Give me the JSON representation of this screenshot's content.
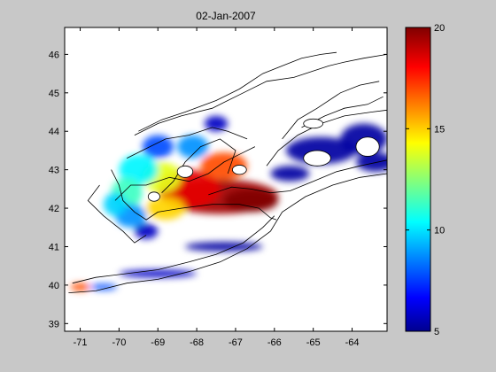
{
  "chart_data": {
    "type": "heatmap",
    "title": "02-Jan-2007",
    "xlabel": "",
    "ylabel": "",
    "xlim": [
      -71.4,
      -63.1
    ],
    "ylim": [
      38.8,
      46.7
    ],
    "x_ticks": [
      -71,
      -70,
      -69,
      -68,
      -67,
      -66,
      -65,
      -64
    ],
    "y_ticks": [
      39,
      40,
      41,
      42,
      43,
      44,
      45,
      46
    ],
    "x_tick_labels": [
      "-71",
      "-70",
      "-69",
      "-68",
      "-67",
      "-66",
      "-65",
      "-64"
    ],
    "y_tick_labels": [
      "39",
      "40",
      "41",
      "42",
      "43",
      "44",
      "45",
      "46"
    ],
    "colormap": "jet",
    "clim": [
      5,
      20
    ],
    "colorbar": {
      "ticks": [
        5,
        10,
        15,
        20
      ],
      "tick_labels": [
        "5",
        "10",
        "15",
        "20"
      ]
    },
    "grid": false,
    "field_blobs": [
      {
        "x": -67.4,
        "y": 42.3,
        "rx": 1.5,
        "ry": 0.45,
        "value": 19.5
      },
      {
        "x": -66.6,
        "y": 42.2,
        "rx": 0.7,
        "ry": 0.3,
        "value": 20
      },
      {
        "x": -68.2,
        "y": 42.5,
        "rx": 0.8,
        "ry": 0.5,
        "value": 18.5
      },
      {
        "x": -67.3,
        "y": 43.1,
        "rx": 0.6,
        "ry": 0.35,
        "value": 17
      },
      {
        "x": -68.9,
        "y": 42.8,
        "rx": 0.5,
        "ry": 0.4,
        "value": 14
      },
      {
        "x": -69.5,
        "y": 43.0,
        "rx": 0.5,
        "ry": 0.4,
        "value": 10.5
      },
      {
        "x": -69.8,
        "y": 42.4,
        "rx": 0.4,
        "ry": 0.4,
        "value": 11.5
      },
      {
        "x": -69.0,
        "y": 43.6,
        "rx": 0.4,
        "ry": 0.3,
        "value": 8
      },
      {
        "x": -68.1,
        "y": 43.6,
        "rx": 0.4,
        "ry": 0.3,
        "value": 9
      },
      {
        "x": -69.7,
        "y": 41.8,
        "rx": 0.4,
        "ry": 0.3,
        "value": 9
      },
      {
        "x": -68.8,
        "y": 42.0,
        "rx": 0.5,
        "ry": 0.3,
        "value": 15
      },
      {
        "x": -67.5,
        "y": 44.2,
        "rx": 0.3,
        "ry": 0.2,
        "value": 6
      },
      {
        "x": -70.1,
        "y": 42.1,
        "rx": 0.3,
        "ry": 0.3,
        "value": 10
      },
      {
        "x": -69.3,
        "y": 41.4,
        "rx": 0.3,
        "ry": 0.2,
        "value": 6
      },
      {
        "x": -64.8,
        "y": 43.5,
        "rx": 0.9,
        "ry": 0.35,
        "value": 5.5
      },
      {
        "x": -63.7,
        "y": 43.8,
        "rx": 0.6,
        "ry": 0.4,
        "value": 5.5
      },
      {
        "x": -63.4,
        "y": 43.2,
        "rx": 0.5,
        "ry": 0.25,
        "value": 5.5
      },
      {
        "x": -65.6,
        "y": 42.9,
        "rx": 0.5,
        "ry": 0.2,
        "value": 5.5
      },
      {
        "x": -71.0,
        "y": 39.95,
        "rx": 0.25,
        "ry": 0.1,
        "value": 17
      },
      {
        "x": -70.4,
        "y": 39.95,
        "rx": 0.35,
        "ry": 0.08,
        "value": 8
      },
      {
        "x": -69.0,
        "y": 40.3,
        "rx": 1.0,
        "ry": 0.1,
        "value": 6
      },
      {
        "x": -67.3,
        "y": 41.0,
        "rx": 1.0,
        "ry": 0.12,
        "value": 5.5
      }
    ],
    "coast_lines": [
      [
        [
          -69.6,
          43.9
        ],
        [
          -69.0,
          44.2
        ],
        [
          -68.4,
          44.4
        ],
        [
          -67.6,
          44.6
        ],
        [
          -66.8,
          45.0
        ],
        [
          -66.2,
          45.3
        ],
        [
          -65.5,
          45.4
        ],
        [
          -64.6,
          45.7
        ],
        [
          -64.2,
          45.8
        ],
        [
          -63.7,
          45.9
        ],
        [
          -63.1,
          46.0
        ]
      ],
      [
        [
          -69.5,
          44.0
        ],
        [
          -68.9,
          44.3
        ],
        [
          -68.3,
          44.5
        ],
        [
          -67.5,
          44.8
        ],
        [
          -66.9,
          45.1
        ],
        [
          -66.3,
          45.5
        ],
        [
          -65.8,
          45.7
        ],
        [
          -65.3,
          45.9
        ],
        [
          -64.8,
          46.0
        ],
        [
          -64.4,
          46.05
        ]
      ],
      [
        [
          -70.2,
          43.0
        ],
        [
          -70.0,
          42.6
        ],
        [
          -69.9,
          42.2
        ],
        [
          -69.6,
          41.9
        ],
        [
          -69.3,
          41.7
        ],
        [
          -69.0,
          41.9
        ],
        [
          -68.4,
          42.0
        ],
        [
          -67.6,
          42.1
        ],
        [
          -66.9,
          42.1
        ],
        [
          -66.4,
          42.0
        ],
        [
          -66.1,
          41.75
        ],
        [
          -65.95,
          41.7
        ]
      ],
      [
        [
          -71.2,
          40.05
        ],
        [
          -70.6,
          40.2
        ],
        [
          -69.8,
          40.3
        ],
        [
          -69.0,
          40.4
        ],
        [
          -68.2,
          40.6
        ],
        [
          -67.5,
          40.8
        ],
        [
          -66.8,
          41.1
        ],
        [
          -66.3,
          41.5
        ],
        [
          -66.0,
          41.8
        ]
      ],
      [
        [
          -71.3,
          39.8
        ],
        [
          -70.6,
          39.85
        ],
        [
          -69.8,
          40.05
        ],
        [
          -69.0,
          40.15
        ],
        [
          -68.2,
          40.35
        ],
        [
          -67.4,
          40.6
        ],
        [
          -66.7,
          40.95
        ],
        [
          -66.1,
          41.4
        ],
        [
          -65.8,
          41.9
        ],
        [
          -65.2,
          42.3
        ],
        [
          -64.5,
          42.6
        ],
        [
          -63.8,
          42.8
        ],
        [
          -63.1,
          42.9
        ]
      ],
      [
        [
          -70.5,
          42.6
        ],
        [
          -70.8,
          42.2
        ],
        [
          -70.4,
          41.8
        ],
        [
          -69.9,
          41.4
        ],
        [
          -69.6,
          41.1
        ],
        [
          -69.3,
          41.3
        ]
      ],
      [
        [
          -69.8,
          43.3
        ],
        [
          -69.4,
          43.5
        ],
        [
          -68.8,
          43.8
        ],
        [
          -68.2,
          43.9
        ],
        [
          -67.6,
          44.1
        ],
        [
          -67.2,
          44.0
        ],
        [
          -66.7,
          43.8
        ]
      ],
      [
        [
          -70.1,
          42.2
        ],
        [
          -69.7,
          42.6
        ],
        [
          -69.3,
          42.6
        ],
        [
          -68.7,
          42.8
        ],
        [
          -68.2,
          42.7
        ],
        [
          -67.7,
          42.9
        ],
        [
          -67.3,
          43.2
        ],
        [
          -66.9,
          43.4
        ],
        [
          -66.5,
          43.6
        ]
      ],
      [
        [
          -67.2,
          42.9
        ],
        [
          -67.0,
          43.5
        ],
        [
          -67.4,
          43.8
        ],
        [
          -67.9,
          43.6
        ],
        [
          -68.3,
          43.2
        ],
        [
          -68.6,
          42.7
        ],
        [
          -68.9,
          42.4
        ]
      ],
      [
        [
          -65.8,
          43.8
        ],
        [
          -65.4,
          44.3
        ],
        [
          -64.9,
          44.6
        ],
        [
          -64.3,
          45.0
        ],
        [
          -63.8,
          45.2
        ],
        [
          -63.3,
          45.3
        ]
      ],
      [
        [
          -65.3,
          44.1
        ],
        [
          -64.7,
          44.4
        ],
        [
          -64.2,
          44.6
        ],
        [
          -63.6,
          44.7
        ],
        [
          -63.2,
          44.9
        ]
      ],
      [
        [
          -66.2,
          43.1
        ],
        [
          -65.9,
          43.5
        ],
        [
          -65.4,
          43.9
        ],
        [
          -64.8,
          44.2
        ],
        [
          -64.2,
          44.4
        ],
        [
          -63.5,
          44.5
        ],
        [
          -63.1,
          44.55
        ]
      ],
      [
        [
          -67.7,
          42.35
        ],
        [
          -67.1,
          42.55
        ],
        [
          -66.6,
          42.5
        ],
        [
          -66.1,
          42.4
        ],
        [
          -65.6,
          42.45
        ],
        [
          -65.0,
          42.7
        ],
        [
          -64.4,
          42.95
        ],
        [
          -63.8,
          43.1
        ],
        [
          -63.1,
          43.25
        ]
      ]
    ],
    "bank_rings": [
      {
        "x": -64.9,
        "y": 43.3,
        "rx": 0.35,
        "ry": 0.2
      },
      {
        "x": -63.6,
        "y": 43.6,
        "rx": 0.3,
        "ry": 0.25
      },
      {
        "x": -68.3,
        "y": 42.95,
        "rx": 0.2,
        "ry": 0.15
      },
      {
        "x": -69.1,
        "y": 42.3,
        "rx": 0.15,
        "ry": 0.12
      },
      {
        "x": -66.9,
        "y": 43.0,
        "rx": 0.18,
        "ry": 0.12
      },
      {
        "x": -65.0,
        "y": 44.2,
        "rx": 0.25,
        "ry": 0.12
      }
    ]
  }
}
